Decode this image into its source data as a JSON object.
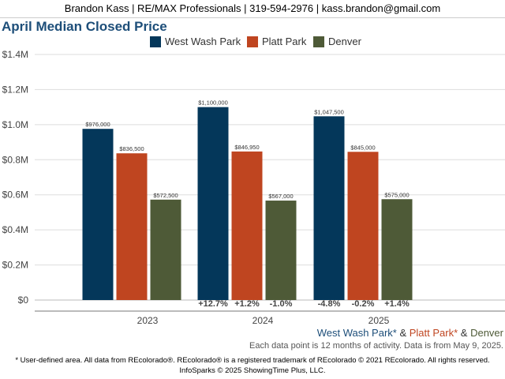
{
  "header": {
    "text": "Brandon Kass | RE/MAX Professionals | 319-594-2976 | kass.brandon@gmail.com"
  },
  "colors": {
    "west_wash_park": "#04375a",
    "platt_park": "#bf4520",
    "denver": "#4e5a37",
    "title": "#1d4e79"
  },
  "chart_data": {
    "type": "bar",
    "title": "April Median Closed Price",
    "categories": [
      "2023",
      "2024",
      "2025"
    ],
    "series": [
      {
        "name": "West Wash Park",
        "values": [
          976000,
          1100000,
          1047500
        ],
        "labels": [
          "$976,000",
          "$1,100,000",
          "$1,047,500"
        ],
        "change": [
          "",
          "+12.7%",
          "-4.8%"
        ]
      },
      {
        "name": "Platt Park",
        "values": [
          836500,
          846950,
          845000
        ],
        "labels": [
          "$836,500",
          "$846,950",
          "$845,000"
        ],
        "change": [
          "",
          "+1.2%",
          "-0.2%"
        ]
      },
      {
        "name": "Denver",
        "values": [
          572500,
          567000,
          575000
        ],
        "labels": [
          "$572,500",
          "$567,000",
          "$575,000"
        ],
        "change": [
          "",
          "-1.0%",
          "+1.4%"
        ]
      }
    ],
    "ylim": [
      0,
      1400000
    ],
    "yticks": [
      0,
      200000,
      400000,
      600000,
      800000,
      1000000,
      1200000,
      1400000
    ],
    "ytick_labels": [
      "$0",
      "$0.2M",
      "$0.4M",
      "$0.6M",
      "$0.8M",
      "$1.0M",
      "$1.2M",
      "$1.4M"
    ],
    "grid": true,
    "legend_position": "top"
  },
  "footer": {
    "series_1": "West Wash Park*",
    "sep_1": " & ",
    "series_2": "Platt Park*",
    "sep_2": " & ",
    "series_3": "Denver",
    "note": "Each data point is 12 months of activity. Data is from May 9, 2025.",
    "disclaimer": "* User-defined area. All data from REcolorado®. REcolorado® is a registered trademark of REcolorado © 2021 REcolorado. All rights reserved.",
    "copyright": "InfoSparks © 2025 ShowingTime Plus, LLC."
  }
}
